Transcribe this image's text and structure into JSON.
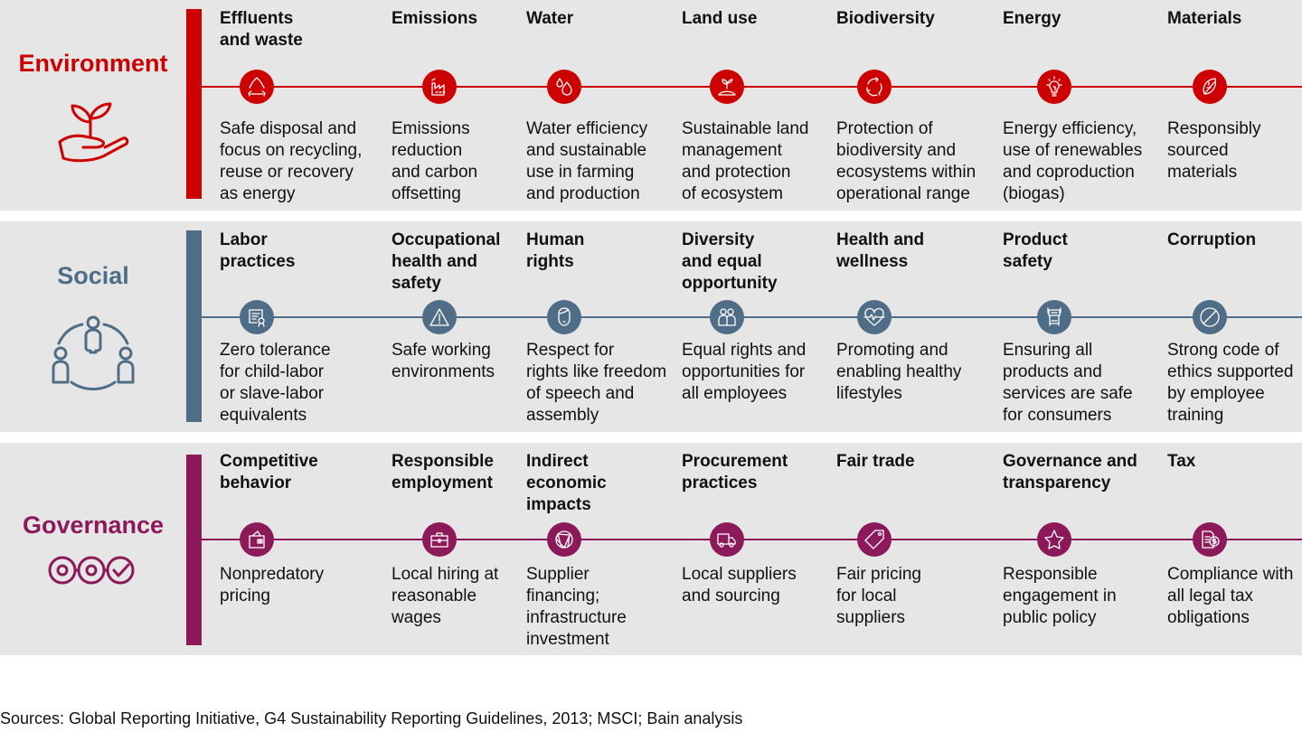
{
  "bands": [
    {
      "key": "environment",
      "title": "Environment",
      "color": "#cc0000",
      "icon": "hand-sprout-icon",
      "topics": [
        {
          "title": [
            "Effluents",
            "and waste"
          ],
          "icon": "recycle-icon",
          "desc": [
            "Safe disposal and",
            "focus on recycling,",
            "reuse or recovery",
            "as energy"
          ]
        },
        {
          "title": [
            "Emissions"
          ],
          "icon": "factory-icon",
          "desc": [
            "Emissions",
            "reduction",
            "and carbon",
            "offsetting"
          ]
        },
        {
          "title": [
            "Water"
          ],
          "icon": "water-drops-icon",
          "desc": [
            "Water efficiency",
            "and sustainable",
            "use in farming",
            "and production"
          ]
        },
        {
          "title": [
            "Land use"
          ],
          "icon": "sprout-mound-icon",
          "desc": [
            "Sustainable land",
            "management",
            "and protection",
            "of ecosystem"
          ]
        },
        {
          "title": [
            "Biodiversity"
          ],
          "icon": "cycle-arrows-icon",
          "desc": [
            "Protection of",
            "biodiversity and",
            "ecosystems within",
            "operational range"
          ]
        },
        {
          "title": [
            "Energy"
          ],
          "icon": "lightbulb-icon",
          "desc": [
            "Energy efficiency,",
            "use of renewables",
            "and coproduction",
            "(biogas)"
          ]
        },
        {
          "title": [
            "Materials"
          ],
          "icon": "leaf-icon",
          "desc": [
            "Responsibly",
            "sourced",
            "materials"
          ]
        }
      ]
    },
    {
      "key": "social",
      "title": "Social",
      "color": "#4f6d87",
      "icon": "people-circle-icon",
      "topics": [
        {
          "title": [
            "Labor",
            "practices"
          ],
          "icon": "certificate-icon",
          "desc": [
            "Zero tolerance",
            "for child-labor",
            "or slave-labor",
            "equivalents"
          ]
        },
        {
          "title": [
            "Occupational",
            "health and",
            "safety"
          ],
          "icon": "warning-icon",
          "desc": [
            "Safe working",
            "environments"
          ]
        },
        {
          "title": [
            "Human",
            "rights"
          ],
          "icon": "person-face-icon",
          "desc": [
            "Respect for",
            "rights like freedom",
            "of speech and",
            "assembly"
          ]
        },
        {
          "title": [
            "Diversity",
            "and equal",
            "opportunity"
          ],
          "icon": "two-people-icon",
          "desc": [
            "Equal rights and",
            "opportunities for",
            "all employees"
          ]
        },
        {
          "title": [
            "Health and",
            "wellness"
          ],
          "icon": "heartbeat-icon",
          "desc": [
            "Promoting and",
            "enabling healthy",
            "lifestyles"
          ]
        },
        {
          "title": [
            "Product",
            "safety"
          ],
          "icon": "truck-front-icon",
          "desc": [
            "Ensuring all",
            "products and",
            "services are safe",
            "for consumers"
          ]
        },
        {
          "title": [
            "Corruption"
          ],
          "icon": "prohibited-icon",
          "desc": [
            "Strong code of",
            "ethics supported",
            "by employee",
            "training"
          ]
        }
      ]
    },
    {
      "key": "governance",
      "title": "Governance",
      "color": "#8c1a5a",
      "icon": "process-check-icon",
      "topics": [
        {
          "title": [
            "Competitive",
            "behavior"
          ],
          "icon": "wallet-icon",
          "desc": [
            "Nonpredatory",
            "pricing"
          ]
        },
        {
          "title": [
            "Responsible",
            "employment"
          ],
          "icon": "briefcase-icon",
          "desc": [
            "Local hiring at",
            "reasonable",
            "wages"
          ]
        },
        {
          "title": [
            "Indirect",
            "economic",
            "impacts"
          ],
          "icon": "network-globe-icon",
          "desc": [
            "Supplier",
            "financing;",
            "infrastructure",
            "investment"
          ]
        },
        {
          "title": [
            "Procurement",
            "practices"
          ],
          "icon": "delivery-truck-icon",
          "desc": [
            "Local suppliers",
            "and sourcing"
          ]
        },
        {
          "title": [
            "Fair trade"
          ],
          "icon": "price-tag-icon",
          "desc": [
            "Fair pricing",
            "for local",
            "suppliers"
          ]
        },
        {
          "title": [
            "Governance and",
            "transparency"
          ],
          "icon": "star-icon",
          "desc": [
            "Responsible",
            "engagement in",
            "public policy"
          ]
        },
        {
          "title": [
            "Tax"
          ],
          "icon": "tax-document-icon",
          "desc": [
            "Compliance with",
            "all legal tax",
            "obligations"
          ]
        }
      ]
    }
  ],
  "source": "Sources: Global Reporting Initiative, G4 Sustainability Reporting Guidelines, 2013; MSCI; Bain analysis"
}
